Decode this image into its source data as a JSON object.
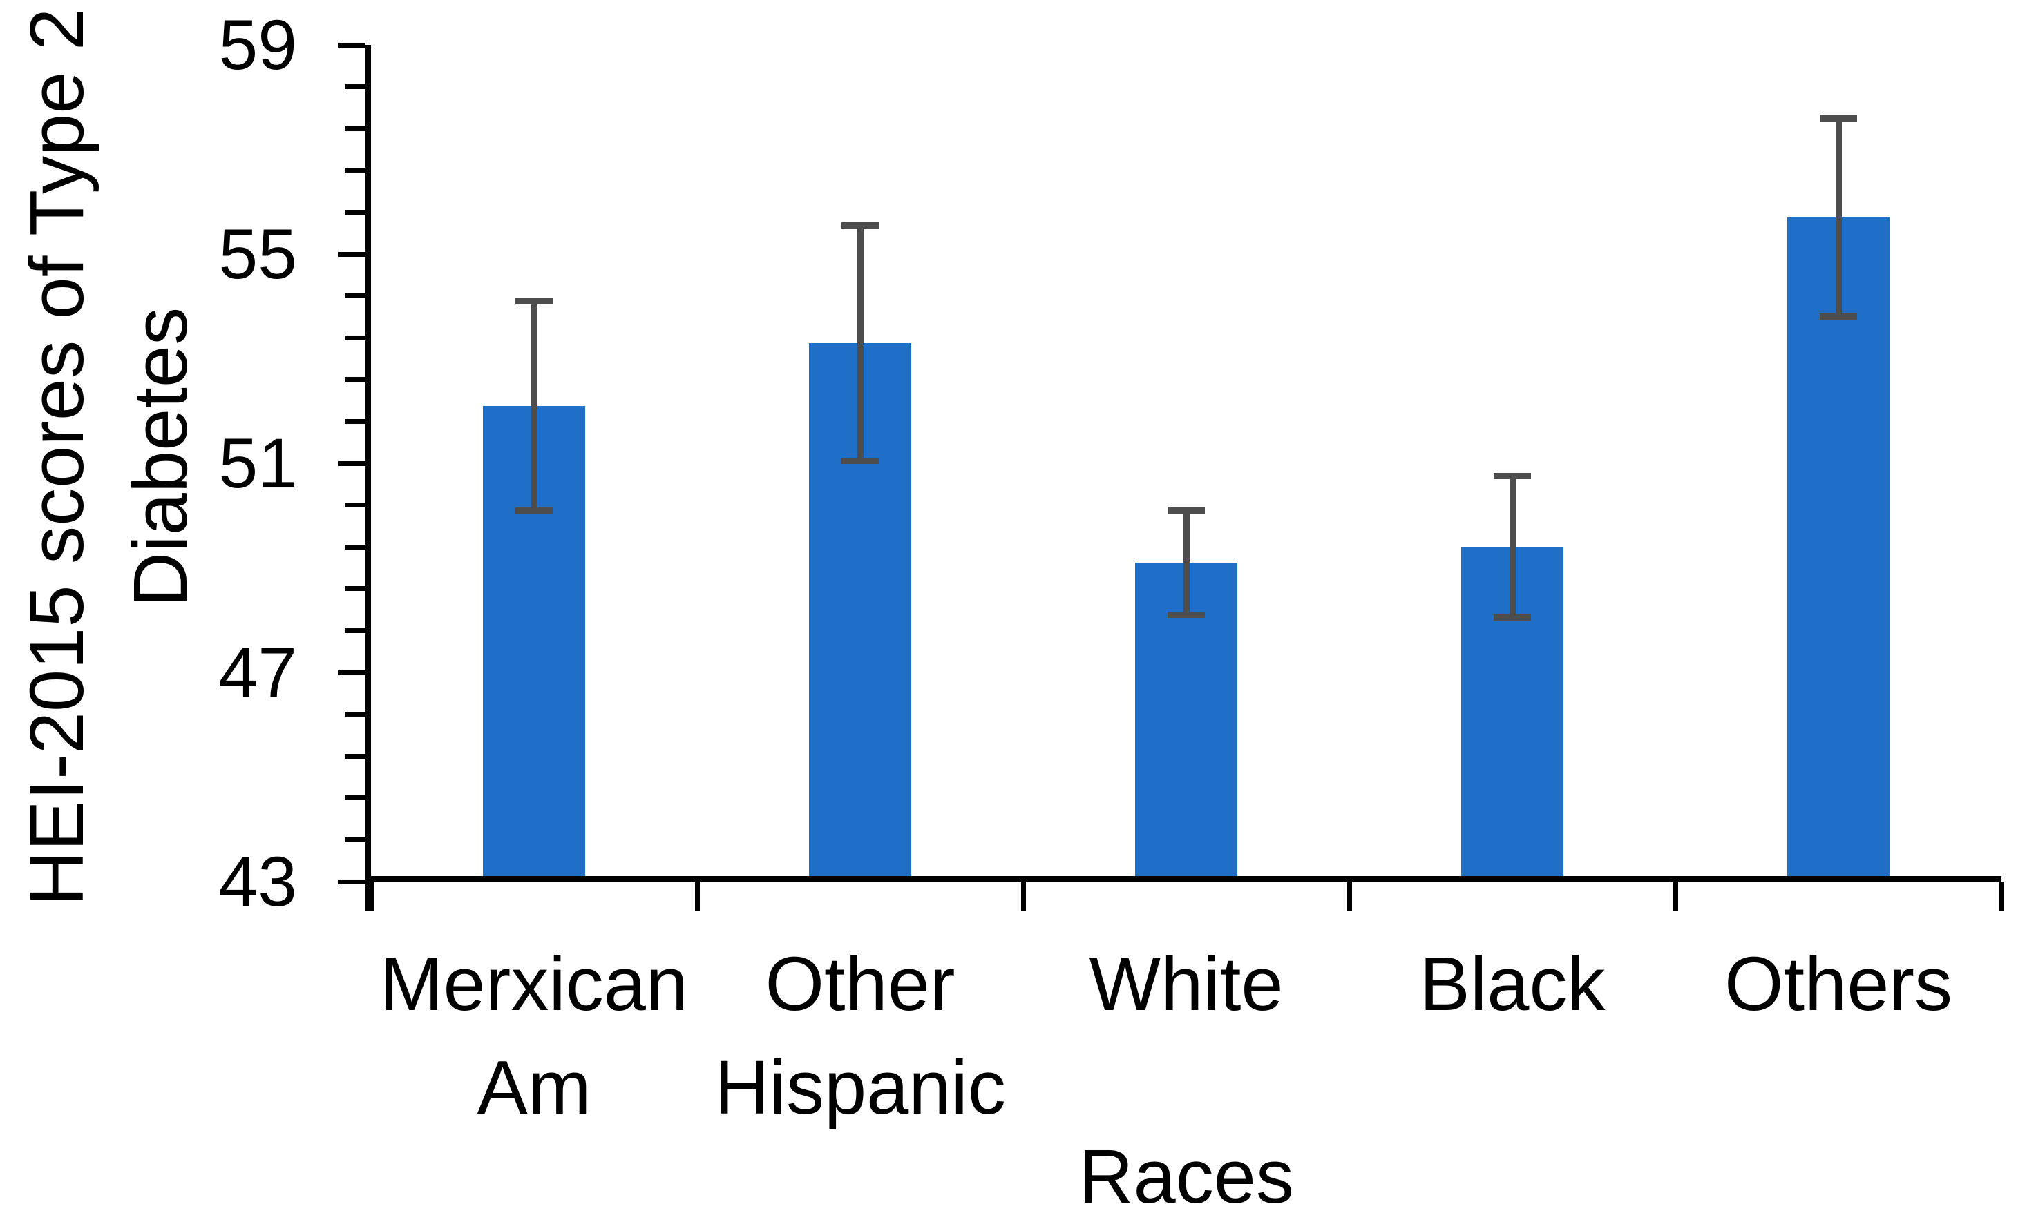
{
  "chart_data": {
    "type": "bar",
    "title": "",
    "xlabel": "Races",
    "ylabel": "HEI-2015 scores of Type 2 Diabetes",
    "ylabel_lines": [
      "HEI-2015 scores of Type 2",
      "Diabetes"
    ],
    "categories": [
      "Merxican Am",
      "Other Hispanic",
      "White",
      "Black",
      "Others"
    ],
    "category_label_lines": [
      [
        "Merxican",
        "Am"
      ],
      [
        "Other",
        "Hispanic"
      ],
      [
        "White"
      ],
      [
        "Black"
      ],
      [
        "Others"
      ]
    ],
    "values": [
      52.1,
      53.3,
      49.1,
      49.4,
      55.7
    ],
    "error_bars": [
      2.0,
      2.25,
      1.0,
      1.35,
      1.9
    ],
    "y_axis": {
      "min": 43,
      "max": 59,
      "major_tick_interval": 4,
      "minor_tick_interval": 0.8,
      "tick_labels": [
        "43",
        "47",
        "51",
        "55",
        "59"
      ]
    },
    "grid": "off",
    "legend": "none",
    "colors": {
      "bar_fill": "#1F6FC8",
      "error_bar": "#4D4D4D",
      "axis": "#000000",
      "text": "#000000"
    }
  }
}
